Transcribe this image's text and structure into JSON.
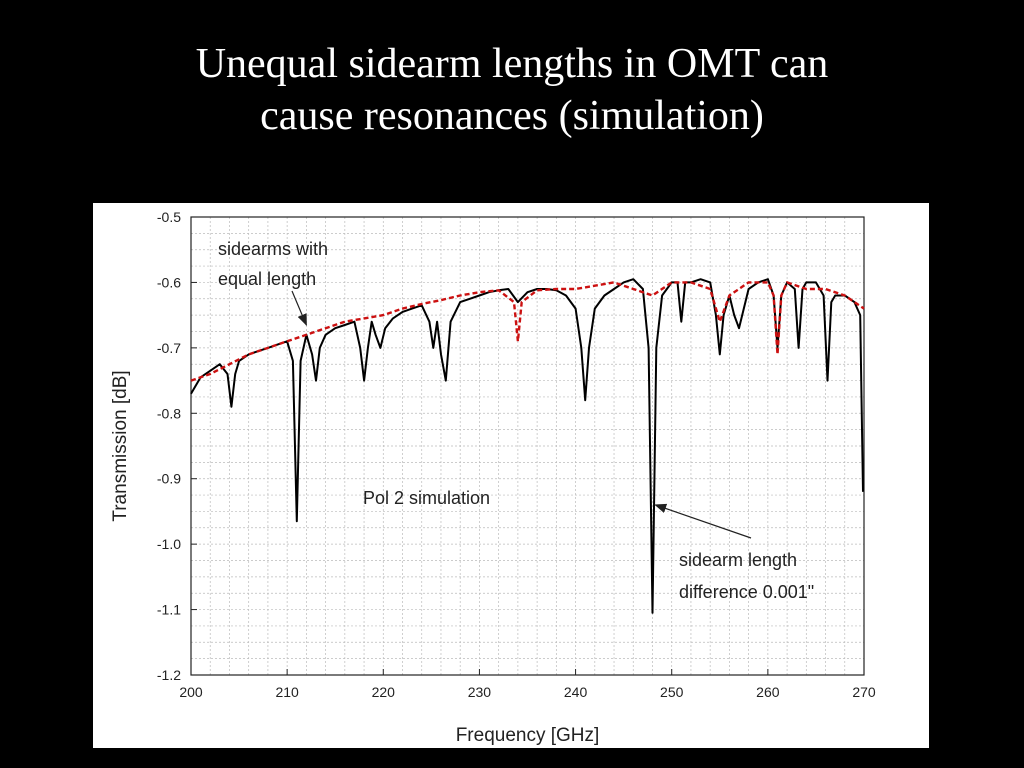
{
  "slide": {
    "title_line1": "Unequal sidearm lengths in OMT can",
    "title_line2": "cause resonances (simulation)"
  },
  "chart_data": {
    "type": "line",
    "xlabel": "Frequency [GHz]",
    "ylabel": "Transmission [dB]",
    "xlim": [
      200,
      270
    ],
    "ylim": [
      -1.2,
      -0.5
    ],
    "xticks": [
      200,
      210,
      220,
      230,
      240,
      250,
      260,
      270
    ],
    "yticks": [
      -0.5,
      -0.6,
      -0.7,
      -0.8,
      -0.9,
      -1.0,
      -1.1,
      -1.2
    ],
    "ytick_labels": [
      "-0.5",
      "-0.6",
      "-0.7",
      "-0.8",
      "-0.9",
      "-1.0",
      "-1.1",
      "-1.2"
    ],
    "grid": true,
    "colors": {
      "unequal": "#000000",
      "equal": "#cc1111",
      "grid": "#bbbbbb"
    },
    "annotations": [
      {
        "lines": [
          "sidearms with",
          "equal length"
        ],
        "points_to": [
          212,
          -0.665
        ]
      },
      {
        "lines": [
          "Pol 2 simulation"
        ]
      },
      {
        "lines": [
          "sidearm length",
          "difference 0.001\""
        ],
        "points_to": [
          248.3,
          -0.94
        ]
      }
    ],
    "series": [
      {
        "key": "unequal",
        "style": "solid",
        "x": [
          200,
          201,
          202,
          203,
          203.8,
          204.2,
          204.6,
          205,
          206,
          207,
          208,
          209,
          210,
          210.6,
          211,
          211.4,
          212,
          212.6,
          213,
          213.4,
          214,
          215,
          216,
          217,
          217.6,
          218,
          218.4,
          218.8,
          219.2,
          219.7,
          220.2,
          221,
          222,
          223,
          224,
          224.8,
          225.2,
          225.6,
          226,
          226.5,
          227,
          228,
          229,
          230,
          231,
          232,
          233,
          234,
          235,
          236,
          237,
          238,
          239,
          240,
          240.6,
          241,
          241.4,
          242,
          243,
          244,
          245,
          246,
          247,
          247.6,
          248,
          248.4,
          249,
          250,
          250.6,
          251,
          251.4,
          252,
          253,
          254,
          254.6,
          255,
          255.4,
          256,
          256.5,
          257,
          257.5,
          258,
          259,
          260,
          260.6,
          261,
          261.4,
          262,
          262.8,
          263.2,
          263.6,
          264,
          265,
          265.8,
          266.2,
          266.6,
          267,
          268,
          269,
          269.6,
          269.9
        ],
        "values": [
          -0.77,
          -0.745,
          -0.735,
          -0.725,
          -0.74,
          -0.79,
          -0.74,
          -0.72,
          -0.71,
          -0.705,
          -0.7,
          -0.695,
          -0.69,
          -0.72,
          -0.965,
          -0.72,
          -0.68,
          -0.71,
          -0.75,
          -0.7,
          -0.68,
          -0.67,
          -0.665,
          -0.66,
          -0.7,
          -0.75,
          -0.7,
          -0.66,
          -0.68,
          -0.7,
          -0.67,
          -0.655,
          -0.645,
          -0.64,
          -0.635,
          -0.66,
          -0.7,
          -0.66,
          -0.71,
          -0.75,
          -0.66,
          -0.63,
          -0.625,
          -0.62,
          -0.615,
          -0.612,
          -0.61,
          -0.63,
          -0.615,
          -0.61,
          -0.61,
          -0.612,
          -0.62,
          -0.64,
          -0.7,
          -0.78,
          -0.7,
          -0.64,
          -0.62,
          -0.61,
          -0.6,
          -0.595,
          -0.61,
          -0.7,
          -1.105,
          -0.7,
          -0.62,
          -0.6,
          -0.6,
          -0.66,
          -0.6,
          -0.6,
          -0.595,
          -0.6,
          -0.65,
          -0.71,
          -0.65,
          -0.62,
          -0.65,
          -0.67,
          -0.64,
          -0.61,
          -0.6,
          -0.595,
          -0.62,
          -0.7,
          -0.62,
          -0.6,
          -0.61,
          -0.7,
          -0.61,
          -0.6,
          -0.6,
          -0.62,
          -0.75,
          -0.63,
          -0.62,
          -0.62,
          -0.63,
          -0.65,
          -0.92
        ]
      },
      {
        "key": "equal",
        "style": "dashed",
        "x": [
          200,
          202,
          204,
          206,
          208,
          210,
          212,
          214,
          216,
          218,
          220,
          222,
          224,
          226,
          228,
          230,
          232,
          233.6,
          234,
          234.4,
          236,
          238,
          240,
          242,
          244,
          246,
          248,
          250,
          252,
          254,
          255,
          256,
          258,
          260,
          260.6,
          261,
          261.4,
          262,
          264,
          266,
          268,
          270
        ],
        "values": [
          -0.75,
          -0.74,
          -0.725,
          -0.71,
          -0.7,
          -0.69,
          -0.68,
          -0.67,
          -0.66,
          -0.655,
          -0.65,
          -0.64,
          -0.633,
          -0.627,
          -0.62,
          -0.615,
          -0.612,
          -0.63,
          -0.69,
          -0.63,
          -0.612,
          -0.61,
          -0.61,
          -0.605,
          -0.6,
          -0.61,
          -0.62,
          -0.6,
          -0.6,
          -0.61,
          -0.66,
          -0.62,
          -0.6,
          -0.6,
          -0.62,
          -0.71,
          -0.62,
          -0.6,
          -0.61,
          -0.61,
          -0.62,
          -0.64
        ]
      }
    ]
  }
}
